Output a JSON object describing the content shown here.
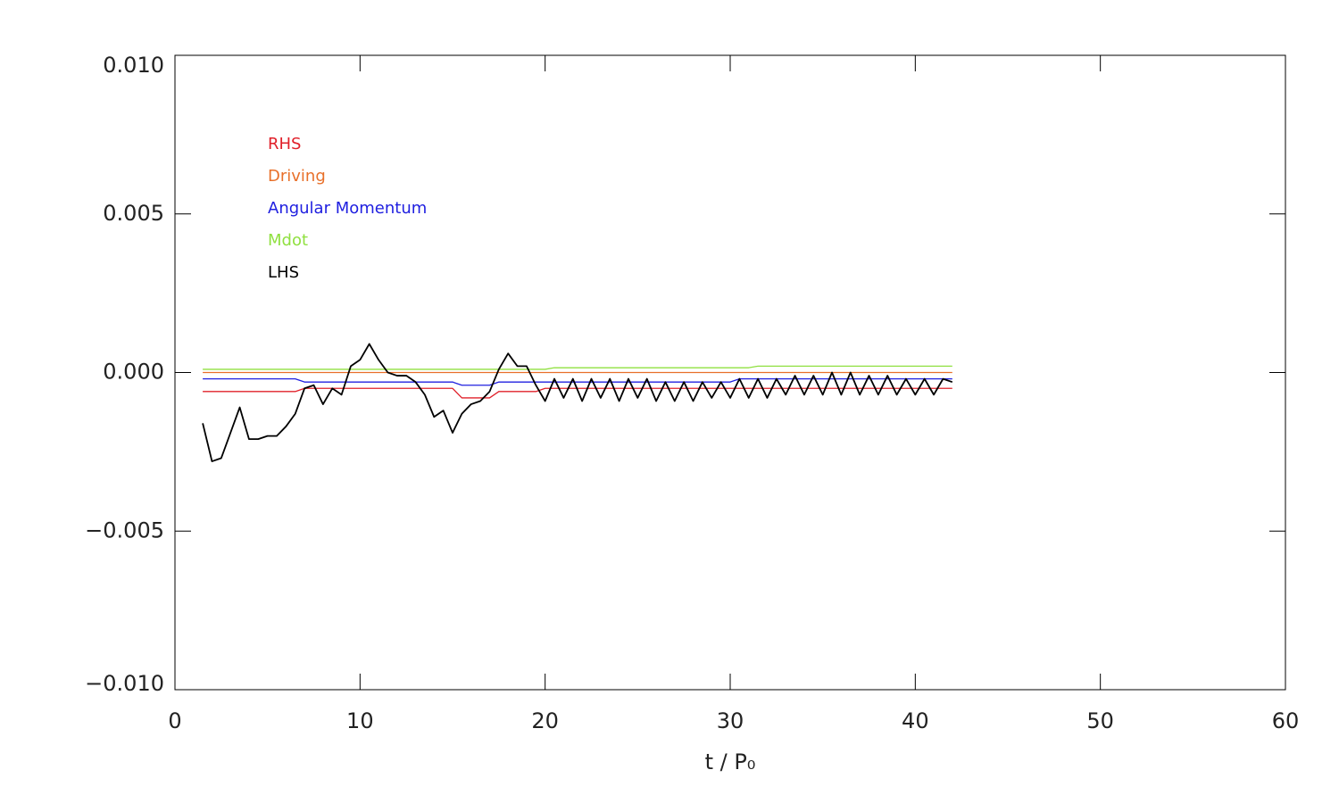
{
  "chart_data": {
    "type": "line",
    "xlabel": "t / P₀",
    "xlim": [
      0,
      60
    ],
    "xticks": [
      0,
      10,
      20,
      30,
      40,
      50,
      60
    ],
    "ylim": [
      -0.01,
      0.01
    ],
    "yticks": [
      {
        "value": -0.01,
        "label": "−0.010"
      },
      {
        "value": -0.005,
        "label": "−0.005"
      },
      {
        "value": 0,
        "label": "0.000"
      },
      {
        "value": 0.005,
        "label": "0.005"
      },
      {
        "value": 0.01,
        "label": "0.010"
      }
    ],
    "grid": false,
    "x": [
      1.5,
      2,
      2.5,
      3,
      3.5,
      4,
      4.5,
      5,
      5.5,
      6,
      6.5,
      7,
      7.5,
      8,
      8.5,
      9,
      9.5,
      10,
      10.5,
      11,
      11.5,
      12,
      12.5,
      13,
      13.5,
      14,
      14.5,
      15,
      15.5,
      16,
      16.5,
      17,
      17.5,
      18,
      18.5,
      19,
      19.5,
      20,
      20.5,
      21,
      21.5,
      22,
      22.5,
      23,
      23.5,
      24,
      24.5,
      25,
      25.5,
      26,
      26.5,
      27,
      27.5,
      28,
      28.5,
      29,
      29.5,
      30,
      30.5,
      31,
      31.5,
      32,
      32.5,
      33,
      33.5,
      34,
      34.5,
      35,
      35.5,
      36,
      36.5,
      37,
      37.5,
      38,
      38.5,
      39,
      39.5,
      40,
      40.5,
      41,
      41.5,
      42
    ],
    "series": [
      {
        "name": "RHS",
        "color": "#e0202a",
        "values": [
          -0.0006,
          -0.0006,
          -0.0006,
          -0.0006,
          -0.0006,
          -0.0006,
          -0.0006,
          -0.0006,
          -0.0006,
          -0.0006,
          -0.0006,
          -0.0005,
          -0.0005,
          -0.0005,
          -0.0005,
          -0.0005,
          -0.0005,
          -0.0005,
          -0.0005,
          -0.0005,
          -0.0005,
          -0.0005,
          -0.0005,
          -0.0005,
          -0.0005,
          -0.0005,
          -0.0005,
          -0.0005,
          -0.0008,
          -0.0008,
          -0.0008,
          -0.0008,
          -0.0006,
          -0.0006,
          -0.0006,
          -0.0006,
          -0.0006,
          -0.0005,
          -0.0005,
          -0.0005,
          -0.0005,
          -0.0005,
          -0.0005,
          -0.0005,
          -0.0005,
          -0.0005,
          -0.0005,
          -0.0005,
          -0.0005,
          -0.0005,
          -0.0005,
          -0.0005,
          -0.0005,
          -0.0005,
          -0.0005,
          -0.0005,
          -0.0005,
          -0.0005,
          -0.0005,
          -0.0005,
          -0.0005,
          -0.0005,
          -0.0005,
          -0.0005,
          -0.0005,
          -0.0005,
          -0.0005,
          -0.0005,
          -0.0005,
          -0.0005,
          -0.0005,
          -0.0005,
          -0.0005,
          -0.0005,
          -0.0005,
          -0.0005,
          -0.0005,
          -0.0005,
          -0.0005,
          -0.0005,
          -0.0005,
          -0.0005
        ]
      },
      {
        "name": "Driving",
        "color": "#e8702a",
        "values": [
          0,
          0,
          0,
          0,
          0,
          0,
          0,
          0,
          0,
          0,
          0,
          0,
          0,
          0,
          0,
          0,
          0,
          0,
          0,
          0,
          0,
          0,
          0,
          0,
          0,
          0,
          0,
          0,
          0,
          0,
          0,
          0,
          0,
          0,
          0,
          0,
          0,
          0,
          0,
          0,
          0,
          0,
          0,
          0,
          0,
          0,
          0,
          0,
          0,
          0,
          0,
          0,
          0,
          0,
          0,
          0,
          0,
          0,
          0,
          0,
          0,
          0,
          0,
          0,
          0,
          0,
          0,
          0,
          0,
          0,
          0,
          0,
          0,
          0,
          0,
          0,
          0,
          0,
          0,
          0,
          0,
          0
        ]
      },
      {
        "name": "Angular Momentum",
        "color": "#2020e0",
        "values": [
          -0.0002,
          -0.0002,
          -0.0002,
          -0.0002,
          -0.0002,
          -0.0002,
          -0.0002,
          -0.0002,
          -0.0002,
          -0.0002,
          -0.0002,
          -0.0003,
          -0.0003,
          -0.0003,
          -0.0003,
          -0.0003,
          -0.0003,
          -0.0003,
          -0.0003,
          -0.0003,
          -0.0003,
          -0.0003,
          -0.0003,
          -0.0003,
          -0.0003,
          -0.0003,
          -0.0003,
          -0.0003,
          -0.0004,
          -0.0004,
          -0.0004,
          -0.0004,
          -0.0003,
          -0.0003,
          -0.0003,
          -0.0003,
          -0.0003,
          -0.0003,
          -0.0003,
          -0.0003,
          -0.0003,
          -0.0003,
          -0.0003,
          -0.0003,
          -0.0003,
          -0.0003,
          -0.0003,
          -0.0003,
          -0.0003,
          -0.0003,
          -0.0003,
          -0.0003,
          -0.0003,
          -0.0003,
          -0.0003,
          -0.0003,
          -0.0003,
          -0.0003,
          -0.0002,
          -0.0002,
          -0.0002,
          -0.0002,
          -0.0002,
          -0.0002,
          -0.0002,
          -0.0002,
          -0.0002,
          -0.0002,
          -0.0002,
          -0.0002,
          -0.0002,
          -0.0002,
          -0.0002,
          -0.0002,
          -0.0002,
          -0.0002,
          -0.0002,
          -0.0002,
          -0.0002,
          -0.0002,
          -0.0002,
          -0.0002
        ]
      },
      {
        "name": "Mdot",
        "color": "#90e040",
        "values": [
          0.0001,
          0.0001,
          0.0001,
          0.0001,
          0.0001,
          0.0001,
          0.0001,
          0.0001,
          0.0001,
          0.0001,
          0.0001,
          0.0001,
          0.0001,
          0.0001,
          0.0001,
          0.0001,
          0.0001,
          0.0001,
          0.0001,
          0.0001,
          0.0001,
          0.0001,
          0.0001,
          0.0001,
          0.0001,
          0.0001,
          0.0001,
          0.0001,
          0.0001,
          0.0001,
          0.0001,
          0.0001,
          0.0001,
          0.0001,
          0.0001,
          0.0001,
          0.0001,
          0.0001,
          0.00015,
          0.00015,
          0.00015,
          0.00015,
          0.00015,
          0.00015,
          0.00015,
          0.00015,
          0.00015,
          0.00015,
          0.00015,
          0.00015,
          0.00015,
          0.00015,
          0.00015,
          0.00015,
          0.00015,
          0.00015,
          0.00015,
          0.00015,
          0.00015,
          0.00015,
          0.0002,
          0.0002,
          0.0002,
          0.0002,
          0.0002,
          0.0002,
          0.0002,
          0.0002,
          0.0002,
          0.0002,
          0.0002,
          0.0002,
          0.0002,
          0.0002,
          0.0002,
          0.0002,
          0.0002,
          0.0002,
          0.0002,
          0.0002,
          0.0002,
          0.0002
        ]
      },
      {
        "name": "LHS",
        "color": "#000000",
        "values": [
          -0.0016,
          -0.0028,
          -0.0027,
          -0.0019,
          -0.0011,
          -0.0021,
          -0.0021,
          -0.002,
          -0.002,
          -0.0017,
          -0.0013,
          -0.0005,
          -0.0004,
          -0.001,
          -0.0005,
          -0.0007,
          0.0002,
          0.0004,
          0.0009,
          0.0004,
          0,
          -0.0001,
          -0.0001,
          -0.0003,
          -0.0007,
          -0.0014,
          -0.0012,
          -0.0019,
          -0.0013,
          -0.001,
          -0.0009,
          -0.0006,
          0.0001,
          0.0006,
          0.0002,
          0.0002,
          -0.0004,
          -0.0009,
          -0.0002,
          -0.0008,
          -0.0002,
          -0.0009,
          -0.0002,
          -0.0008,
          -0.0002,
          -0.0009,
          -0.0002,
          -0.0008,
          -0.0002,
          -0.0009,
          -0.0003,
          -0.0009,
          -0.0003,
          -0.0009,
          -0.0003,
          -0.0008,
          -0.0003,
          -0.0008,
          -0.0002,
          -0.0008,
          -0.0002,
          -0.0008,
          -0.0002,
          -0.0007,
          -0.0001,
          -0.0007,
          -0.0001,
          -0.0007,
          0,
          -0.0007,
          0,
          -0.0007,
          -0.0001,
          -0.0007,
          -0.0001,
          -0.0007,
          -0.0002,
          -0.0007,
          -0.0002,
          -0.0007,
          -0.0002,
          -0.0003
        ]
      }
    ]
  }
}
